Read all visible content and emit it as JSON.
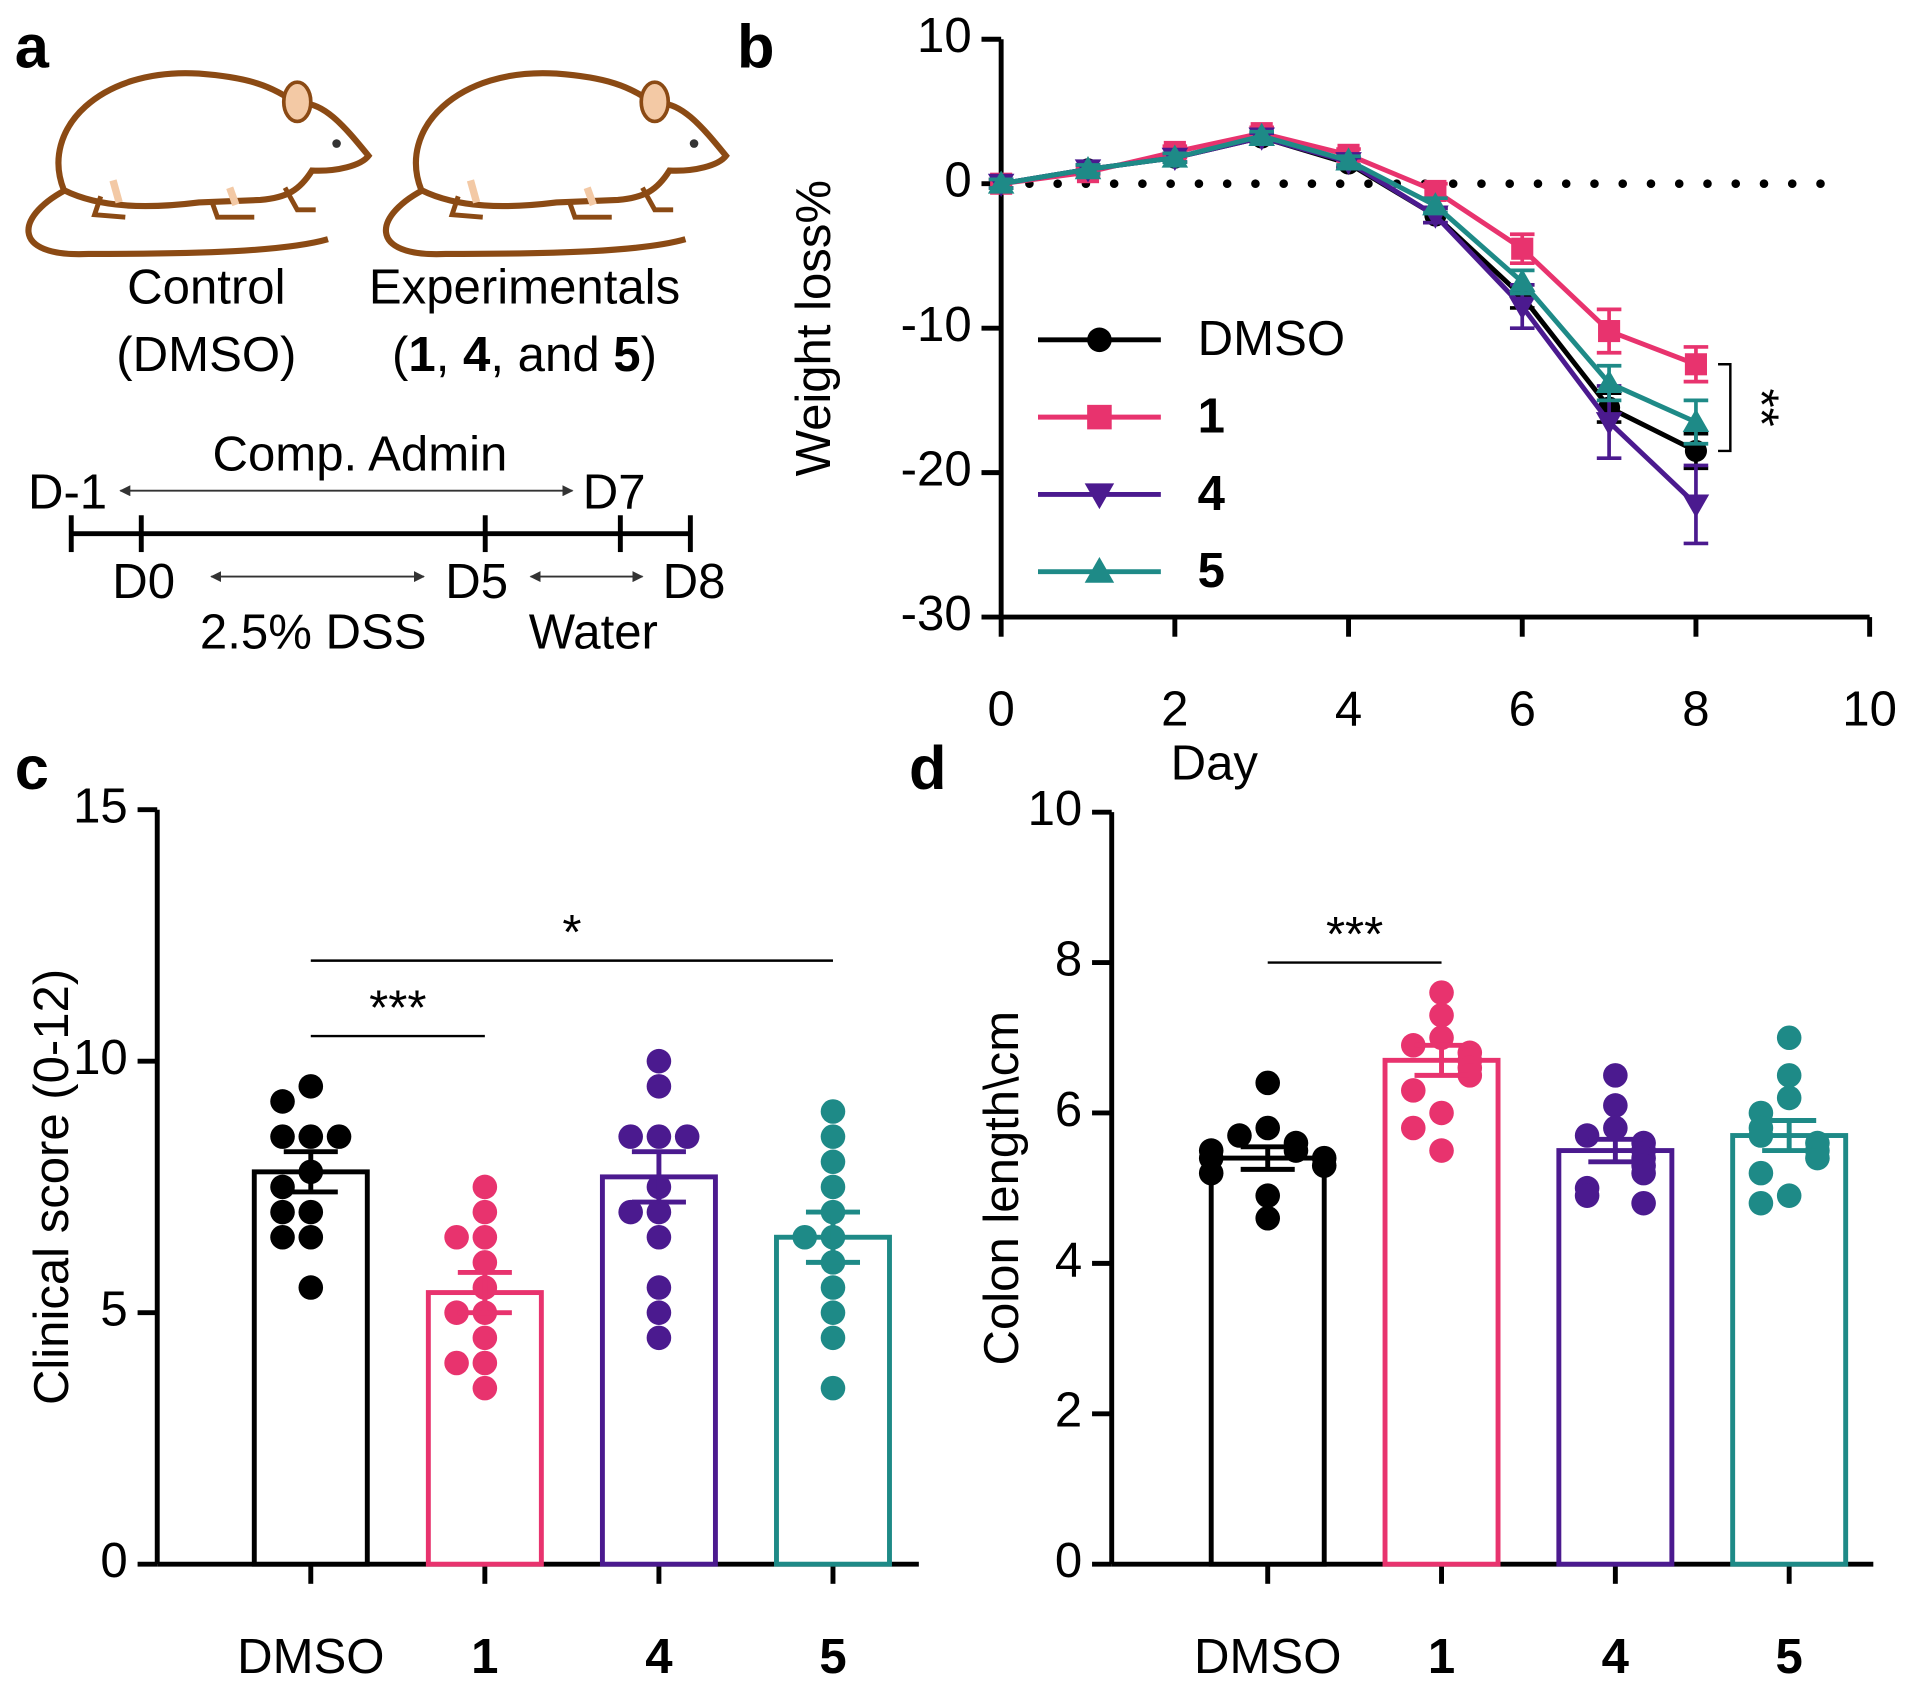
{
  "diagram": {
    "panel_label": "a",
    "control": [
      "Control",
      "(DMSO)"
    ],
    "experimental": "Experimentals",
    "experimental_parts": [
      {
        "text": "(",
        "bold": false
      },
      {
        "text": "1",
        "bold": true
      },
      {
        "text": ", ",
        "bold": false
      },
      {
        "text": "4",
        "bold": true
      },
      {
        "text": ", and ",
        "bold": false
      },
      {
        "text": "5",
        "bold": true
      },
      {
        "text": ")",
        "bold": false
      }
    ],
    "timeline": {
      "admin": "Comp. Admin",
      "d_minus1": "D-1",
      "d7": "D7",
      "d0": "D0",
      "d5": "D5",
      "d8": "D8",
      "dss": "2.5% DSS",
      "water": "Water"
    }
  },
  "chart_data": [
    {
      "type": "line",
      "panel_label": "b",
      "xlabel": "Day",
      "ylabel": "Weight loss%",
      "x": [
        0,
        1,
        2,
        3,
        4,
        5,
        6,
        7,
        8
      ],
      "series": [
        {
          "name": "DMSO",
          "color": "#000000",
          "marker": "circle",
          "values": [
            0,
            1,
            1.8,
            3.2,
            1.4,
            -2.2,
            -7.8,
            -15.5,
            -18.5
          ],
          "errors": [
            0.3,
            0.3,
            0.3,
            0.3,
            0.3,
            0.5,
            0.8,
            1,
            1.2
          ]
        },
        {
          "name": "1",
          "color": "#e8336e",
          "marker": "square",
          "values": [
            0,
            0.8,
            2.2,
            3.5,
            2,
            -0.5,
            -4.5,
            -10.2,
            -12.5
          ],
          "errors": [
            0.3,
            0.3,
            0.4,
            0.4,
            0.4,
            0.5,
            1,
            1.5,
            1.2
          ]
        },
        {
          "name": "4",
          "color": "#4b1a8f",
          "marker": "triangle-down",
          "values": [
            0,
            1,
            1.8,
            3.2,
            1.5,
            -2.2,
            -8.5,
            -16.5,
            -22.2
          ],
          "errors": [
            0.3,
            0.3,
            0.3,
            0.3,
            0.3,
            0.5,
            1.5,
            2.5,
            2.7
          ]
        },
        {
          "name": "5",
          "color": "#1e8a87",
          "marker": "triangle-up",
          "values": [
            0,
            1,
            1.8,
            3.3,
            1.6,
            -1.5,
            -6.8,
            -13.8,
            -16.5
          ],
          "errors": [
            0.3,
            0.3,
            0.3,
            0.3,
            0.3,
            0.5,
            0.8,
            1.2,
            1.5
          ]
        }
      ],
      "xlim": [
        0,
        10
      ],
      "xticks": [
        0,
        2,
        4,
        6,
        8,
        10
      ],
      "ylim": [
        -30,
        10
      ],
      "yticks": [
        -30,
        -20,
        -10,
        0,
        10
      ],
      "reference_line": 0,
      "legend": "left",
      "annotation": {
        "label": "**",
        "x": 8,
        "between": [
          "1",
          "DMSO"
        ]
      }
    },
    {
      "type": "bar-scatter",
      "panel_label": "c",
      "ylabel": "Clinical score (0-12)",
      "categories": [
        "DMSO",
        "1",
        "4",
        "5"
      ],
      "category_bold": [
        false,
        true,
        true,
        true
      ],
      "colors": [
        "#000000",
        "#e8336e",
        "#4b1a8f",
        "#1e8a87"
      ],
      "values": [
        7.8,
        5.4,
        7.7,
        6.5
      ],
      "errors": [
        0.4,
        0.4,
        0.5,
        0.5
      ],
      "points": [
        [
          9.5,
          9.2,
          8.5,
          8.5,
          8.5,
          7.8,
          7.5,
          7,
          7,
          6.5,
          6.5,
          5.5
        ],
        [
          7.5,
          7,
          6.5,
          6.5,
          6,
          5.5,
          5,
          5,
          4.5,
          4,
          4,
          3.5
        ],
        [
          10,
          9.5,
          8.5,
          8.5,
          8.5,
          7.5,
          7,
          7,
          6.5,
          5.5,
          5,
          4.5
        ],
        [
          9,
          8.5,
          8,
          7.5,
          7,
          6.5,
          6.5,
          6,
          5.5,
          5,
          4.5,
          3.5
        ]
      ],
      "ylim": [
        0,
        15
      ],
      "yticks": [
        0,
        5,
        10,
        15
      ],
      "comparisons": [
        {
          "groups": [
            "DMSO",
            "1"
          ],
          "y": 10.5,
          "label": "***"
        },
        {
          "groups": [
            "DMSO",
            "5"
          ],
          "y": 12,
          "label": "*"
        }
      ]
    },
    {
      "type": "bar-scatter",
      "panel_label": "d",
      "ylabel": "Colon length\\cm",
      "categories": [
        "DMSO",
        "1",
        "4",
        "5"
      ],
      "category_bold": [
        false,
        true,
        true,
        true
      ],
      "colors": [
        "#000000",
        "#e8336e",
        "#4b1a8f",
        "#1e8a87"
      ],
      "values": [
        5.4,
        6.7,
        5.5,
        5.7
      ],
      "errors": [
        0.15,
        0.2,
        0.15,
        0.2
      ],
      "points": [
        [
          6.4,
          5.8,
          5.7,
          5.6,
          5.5,
          5.5,
          5.4,
          5.4,
          5.3,
          5.2,
          4.9,
          4.6
        ],
        [
          7.6,
          7.3,
          7.0,
          6.9,
          6.8,
          6.7,
          6.6,
          6.5,
          6.3,
          6.0,
          5.8,
          5.5
        ],
        [
          6.5,
          6.1,
          5.8,
          5.7,
          5.6,
          5.5,
          5.4,
          5.3,
          5.2,
          5.0,
          4.9,
          4.8
        ],
        [
          7.0,
          6.5,
          6.2,
          6.0,
          5.8,
          5.7,
          5.6,
          5.5,
          5.4,
          5.2,
          4.9,
          4.8
        ]
      ],
      "ylim": [
        0,
        10
      ],
      "yticks": [
        0,
        2,
        4,
        6,
        8,
        10
      ],
      "comparisons": [
        {
          "groups": [
            "DMSO",
            "1"
          ],
          "y": 8,
          "label": "***"
        }
      ]
    }
  ]
}
